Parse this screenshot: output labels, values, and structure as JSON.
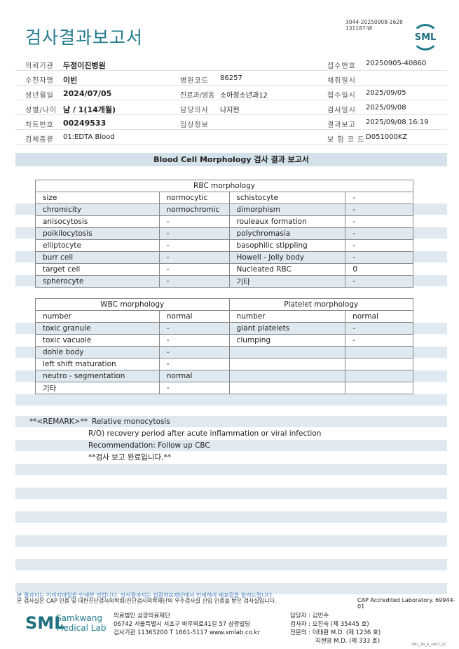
{
  "header": {
    "title": "검사결과보고서",
    "doc_id_1": "3044-20250908-1628",
    "doc_id_2": "131187-W",
    "logo": "SML"
  },
  "info": {
    "r1": {
      "l1": "의뢰기관",
      "v1": "두정이진병원",
      "l3": "접수번호",
      "v3": "20250905-40860"
    },
    "r2": {
      "l1": "수진자명",
      "v1": "이빈",
      "l2": "병원코드",
      "v2": "86257",
      "l3": "채취일시",
      "v3": ""
    },
    "r3": {
      "l1": "생년월일",
      "v1": "2024/07/05",
      "l2": "진료과/병동",
      "v2": "소아청소년과12",
      "l3": "접수일시",
      "v3": "2025/09/05"
    },
    "r4": {
      "l1": "성별/나이",
      "v1": "남 / 1(14개월)",
      "l2": "담당의사",
      "v2": "나지현",
      "l3": "검사일시",
      "v3": "2025/09/08"
    },
    "r5": {
      "l1": "차트번호",
      "v1": "00249533",
      "l2": "임상정보",
      "v2": "",
      "l3": "결과보고",
      "v3": "2025/09/08 16:19"
    },
    "r6": {
      "l1": "검체종류",
      "v1": "01:EDTA Blood",
      "l3": "보 험 코 드",
      "v3": "D051000KZ"
    }
  },
  "section_title": "Blood Cell Morphology 검사 결과 보고서",
  "rbc": {
    "title": "RBC morphology",
    "rows": [
      [
        "size",
        "normocytic",
        "schistocyte",
        "-"
      ],
      [
        "chromicity",
        "normochromic",
        "dimorphism",
        "-"
      ],
      [
        "anisocytosis",
        "-",
        "rouleaux formation",
        "-"
      ],
      [
        "poikilocytosis",
        "-",
        "polychromasia",
        "-"
      ],
      [
        "elliptocyte",
        "-",
        "basophilic stippling",
        "-"
      ],
      [
        "burr cell",
        "-",
        "Howell - Jolly body",
        "-"
      ],
      [
        "target cell",
        "-",
        "Nucleated RBC",
        "0"
      ],
      [
        "spherocyte",
        "-",
        "기타",
        "-"
      ]
    ]
  },
  "wbc": {
    "title": "WBC morphology",
    "plt_title": "Platelet morphology",
    "rows": [
      [
        "number",
        "normal",
        "number",
        "normal"
      ],
      [
        "toxic granule",
        "-",
        "giant platelets",
        "-"
      ],
      [
        "toxic vacuole",
        "-",
        "clumping",
        "-"
      ],
      [
        "dohle body",
        "-",
        "",
        ""
      ],
      [
        "left shift maturation",
        "-",
        "",
        ""
      ],
      [
        "neutro - segmentation",
        "normal",
        "",
        ""
      ],
      [
        "기타",
        "-",
        "",
        ""
      ]
    ]
  },
  "remark": {
    "label": "**<REMARK>**",
    "l1": "Relative monocytosis",
    "l2": "R/O) recovery period after acute inflammation or viral infection",
    "l3": "Recommendation: Follow up CBC",
    "l4": "**검사 보고 완료입니다.**"
  },
  "footer": {
    "notice": "본 결과지는 이미지파일을 인쇄한 것입니다. 정식결과지는 삼광의료재단에서 인쇄하여 배포됨을 알려드립니다.",
    "cert": "본 검사실은 CAP 인증 및 대한진단검사의학회/진단검사의학재단의 우수검사실 신임 인증을 받은 검사실입니다.",
    "cap": "CAP Accredited Laboratory. 69944-01",
    "logo_text": "SML",
    "brand1": "Samkwang",
    "brand2": "Medical Lab",
    "org": "의료법인 삼광의료재단",
    "addr": "06742 서울특별시 서초구 바우뫼로41길 57 삼광빌딩",
    "contact": "검사기관 11365200 T 1661-5117 www.smlab.co.kr",
    "s1": "담당자 :  김민수",
    "s2": "검사자 :  오진숙 (제 35445 호)",
    "s3": "전문의 :  이태환 M.D. (제 1236 호)",
    "s4": "지현영 M.D. (제 333 호)",
    "form": "SML_TR_A_2407_V1"
  }
}
